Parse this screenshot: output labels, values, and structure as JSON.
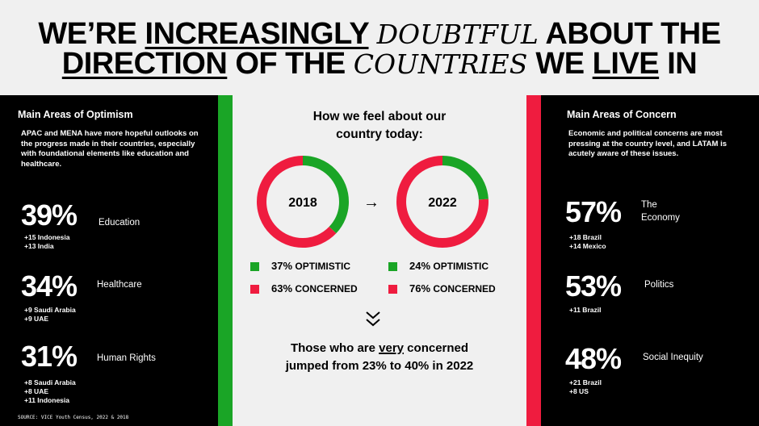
{
  "headline": {
    "line1": [
      "WE’RE ",
      "INCREASINGLY",
      " ",
      "DOUBTFUL",
      " ABOUT THE"
    ],
    "line2": [
      "DIRECTION",
      " OF THE ",
      "COUNTRIES",
      " WE ",
      "LIVE",
      " IN"
    ]
  },
  "left": {
    "title": "Main Areas of Optimism",
    "description": "APAC and MENA have more hopeful outlooks on the progress made in their countries, especially with foundational elements like education and healthcare.",
    "stats": [
      {
        "pct": "39%",
        "label": "Education",
        "subs": [
          "+15 Indonesia",
          "+13 India"
        ]
      },
      {
        "pct": "34%",
        "label": "Healthcare",
        "subs": [
          "+9 Saudi Arabia",
          "+9 UAE"
        ]
      },
      {
        "pct": "31%",
        "label": "Human Rights",
        "subs": [
          "+8 Saudi Arabia",
          "+8 UAE",
          "+11 Indonesia"
        ]
      }
    ],
    "source": "SOURCE: VICE Youth Census, 2022 & 2018"
  },
  "right": {
    "title": "Main Areas of Concern",
    "description": "Economic and political concerns are most pressing at the country level, and LATAM is acutely aware of these issues.",
    "stats": [
      {
        "pct": "57%",
        "label": "The Economy",
        "subs": [
          "+18 Brazil",
          "+14 Mexico"
        ]
      },
      {
        "pct": "53%",
        "label": "Politics",
        "subs": [
          "+11 Brazil"
        ]
      },
      {
        "pct": "48%",
        "label": "Social Inequity",
        "subs": [
          "+21 Brazil",
          "+8 US"
        ]
      }
    ]
  },
  "center": {
    "title_line1": "How we feel about our",
    "title_line2": "country today:",
    "arrow": "→",
    "conclusion_pre": "Those who are ",
    "conclusion_emph": "very",
    "conclusion_post": " concerned",
    "conclusion_line2": "jumped from 23% to 40% in 2022"
  },
  "colors": {
    "optimistic": "#1aa526",
    "concerned": "#ef1c3f",
    "panel": "#000000",
    "background": "#f0f0f0"
  },
  "chart_data": {
    "type": "pie",
    "style": "donut",
    "categories": [
      "OPTIMISTIC",
      "CONCERNED"
    ],
    "charts": [
      {
        "label": "2018",
        "values": [
          37,
          63
        ],
        "legend": [
          "37%",
          "63%"
        ]
      },
      {
        "label": "2022",
        "values": [
          24,
          76
        ],
        "legend": [
          "24%",
          "76%"
        ]
      }
    ],
    "unit": "%"
  }
}
